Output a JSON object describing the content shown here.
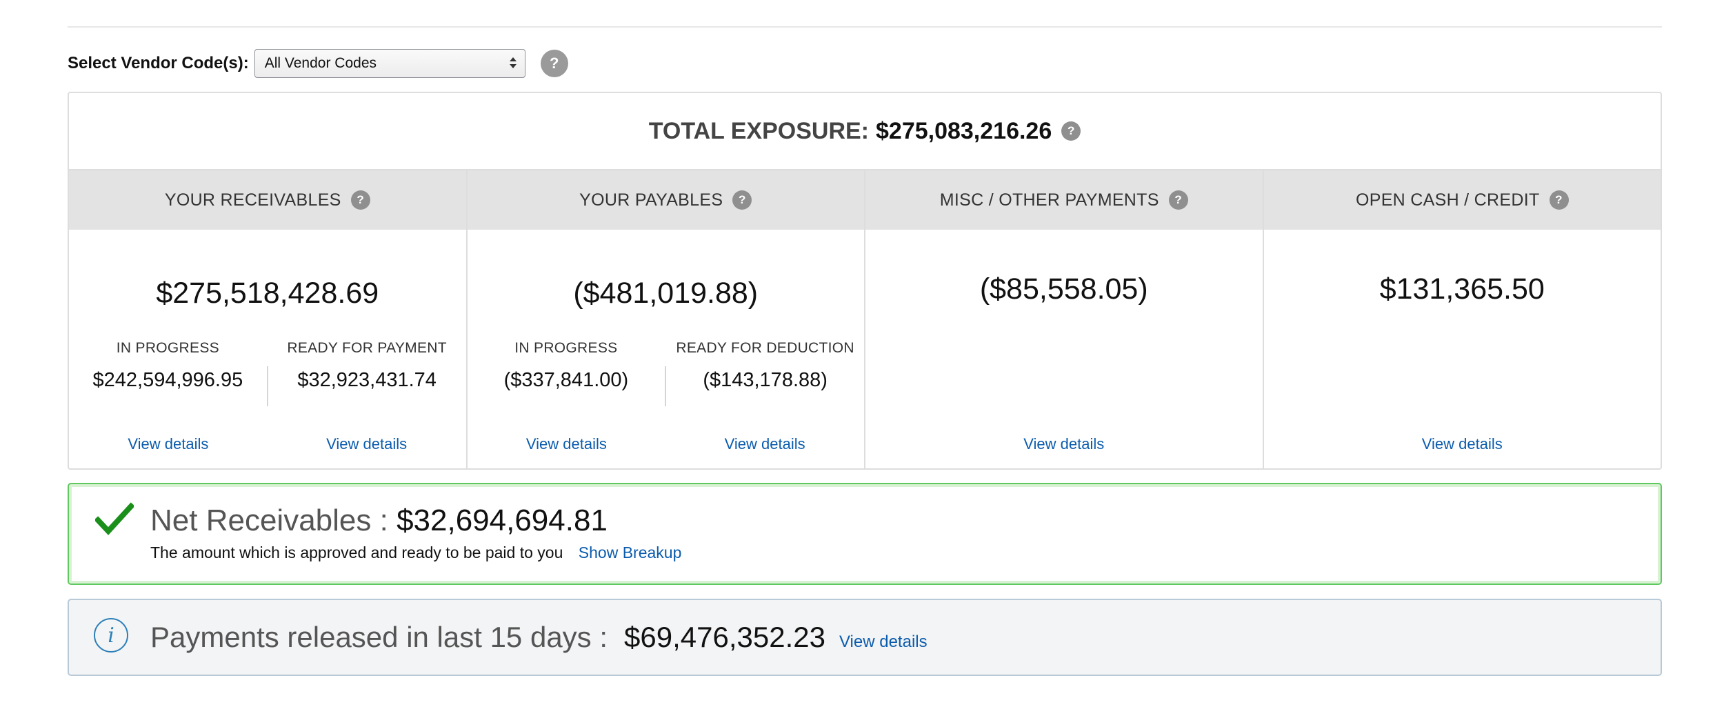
{
  "vendor": {
    "label": "Select Vendor Code(s):",
    "selected": "All Vendor Codes"
  },
  "exposure": {
    "label": "TOTAL EXPOSURE:",
    "value": "$275,083,216.26"
  },
  "columns": [
    {
      "title": "YOUR RECEIVABLES",
      "amount": "$275,518,428.69",
      "subs": [
        {
          "label": "IN PROGRESS",
          "value": "$242,594,996.95",
          "link": "View details"
        },
        {
          "label": "READY FOR PAYMENT",
          "value": "$32,923,431.74",
          "link": "View details"
        }
      ]
    },
    {
      "title": "YOUR PAYABLES",
      "amount": "($481,019.88)",
      "subs": [
        {
          "label": "IN PROGRESS",
          "value": "($337,841.00)",
          "link": "View details"
        },
        {
          "label": "READY FOR DEDUCTION",
          "value": "($143,178.88)",
          "link": "View details"
        }
      ]
    },
    {
      "title": "MISC / OTHER PAYMENTS",
      "amount": "($85,558.05)",
      "link": "View details"
    },
    {
      "title": "OPEN CASH / CREDIT",
      "amount": "$131,365.50",
      "link": "View details"
    }
  ],
  "net": {
    "label": "Net Receivables :",
    "amount": "$32,694,694.81",
    "description": "The amount which is approved and ready to be paid to you",
    "link": "Show Breakup"
  },
  "payments": {
    "label": "Payments released in last 15 days :",
    "amount": "$69,476,352.23",
    "link": "View details"
  },
  "colors": {
    "link": "#0b5cad",
    "success": "#1a8f1a",
    "success_border": "#5fc85f",
    "info": "#2c7fb8",
    "header_bg": "#e3e3e3"
  },
  "icons": {
    "help": "?",
    "info": "i"
  }
}
